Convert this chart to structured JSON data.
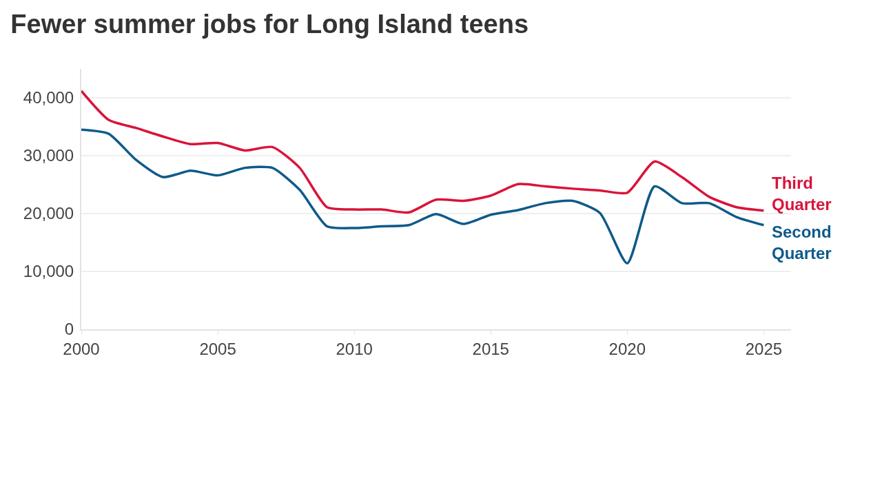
{
  "chart_data": {
    "type": "line",
    "title": "Fewer summer jobs for Long Island teens",
    "x": [
      2000,
      2001,
      2002,
      2003,
      2004,
      2005,
      2006,
      2007,
      2008,
      2009,
      2010,
      2011,
      2012,
      2013,
      2014,
      2015,
      2016,
      2017,
      2018,
      2019,
      2020,
      2021,
      2022,
      2023,
      2024,
      2025
    ],
    "series": [
      {
        "name": "Third Quarter",
        "color": "#d9143a",
        "values": [
          41200,
          36200,
          34800,
          33300,
          32000,
          32200,
          30900,
          31500,
          27900,
          21100,
          20700,
          20700,
          20200,
          22400,
          22200,
          23100,
          25100,
          24700,
          24300,
          24000,
          23600,
          29000,
          26300,
          22900,
          21100,
          20500
        ]
      },
      {
        "name": "Second Quarter",
        "color": "#0e5a8a",
        "values": [
          34500,
          33800,
          29300,
          26300,
          27400,
          26600,
          27900,
          27900,
          24100,
          17800,
          17500,
          17800,
          18000,
          19900,
          18200,
          19800,
          20600,
          21800,
          22200,
          20100,
          11400,
          24700,
          21800,
          21800,
          19400,
          18000
        ]
      }
    ],
    "xlim": [
      2000,
      2026
    ],
    "xticks": [
      2000,
      2005,
      2010,
      2015,
      2020,
      2025
    ],
    "ylim": [
      0,
      45000
    ],
    "yticks": [
      0,
      {
        "value": 10000,
        "label": "10,000"
      },
      {
        "value": 20000,
        "label": "20,000"
      },
      {
        "value": 30000,
        "label": "30,000"
      },
      {
        "value": 40000,
        "label": "40,000"
      }
    ],
    "grid": "y",
    "legend": false,
    "marker": "none",
    "line_style": "solid"
  }
}
